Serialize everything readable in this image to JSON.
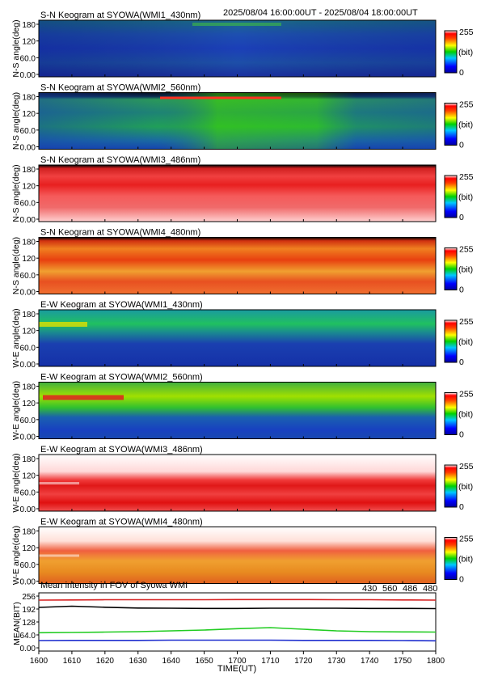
{
  "header": {
    "time_range": "2025/08/04 16:00:00UT - 2025/08/04 18:00:00UT"
  },
  "colorbar": {
    "max_label": "255",
    "unit_label": "(bit)",
    "min_label": "0"
  },
  "panels": [
    {
      "title": "S-N Keogram at SYOWA(WMI1_430nm)",
      "ylabel": "N-S angle(deg)",
      "yticks": [
        "180",
        "120",
        "60.0",
        "0.00"
      ],
      "style": "blue_dim"
    },
    {
      "title": "S-N Keogram at SYOWA(WMI2_560nm)",
      "ylabel": "N-S angle(deg)",
      "yticks": [
        "180",
        "120",
        "60.0",
        "0.00"
      ],
      "style": "green_sn"
    },
    {
      "title": "S-N Keogram at SYOWA(WMI3_486nm)",
      "ylabel": "N-S angle(deg)",
      "yticks": [
        "180",
        "120",
        "60.0",
        "0.00"
      ],
      "style": "red_sn"
    },
    {
      "title": "S-N Keogram at SYOWA(WMI4_480nm)",
      "ylabel": "N-S angle(deg)",
      "yticks": [
        "180",
        "120",
        "60.0",
        "0.00"
      ],
      "style": "orange_sn"
    },
    {
      "title": "E-W Keogram at SYOWA(WMI1_430nm)",
      "ylabel": "W-E angle(deg)",
      "yticks": [
        "180",
        "120",
        "60.0",
        "0.00"
      ],
      "style": "blue_ew"
    },
    {
      "title": "E-W Keogram at SYOWA(WMI2_560nm)",
      "ylabel": "W-E angle(deg)",
      "yticks": [
        "180",
        "120",
        "60.0",
        "0.00"
      ],
      "style": "green_ew"
    },
    {
      "title": "E-W Keogram at SYOWA(WMI3_486nm)",
      "ylabel": "W-E angle(deg)",
      "yticks": [
        "180",
        "120",
        "60.0",
        "0.00"
      ],
      "style": "red_ew"
    },
    {
      "title": "E-W Keogram at SYOWA(WMI4_480nm)",
      "ylabel": "W-E angle(deg)",
      "yticks": [
        "180",
        "120",
        "60.0",
        "0.00"
      ],
      "style": "orange_ew"
    }
  ],
  "chart_data": {
    "type": "line",
    "title": "Mean intensity in FOV of Syowa WMI",
    "ylabel": "MEAN(BIT)",
    "xlabel": "TIME(UT)",
    "ylim": [
      0,
      256
    ],
    "yticks": [
      "256",
      "192",
      "128",
      "64.0",
      "0.00"
    ],
    "x": [
      "1600",
      "1610",
      "1620",
      "1630",
      "1640",
      "1650",
      "1700",
      "1710",
      "1720",
      "1730",
      "1740",
      "1750",
      "1800"
    ],
    "series": [
      {
        "name": "430",
        "color": "#1f2fcf",
        "values": [
          36,
          37,
          37,
          37,
          38,
          38,
          38,
          38,
          37,
          37,
          37,
          36,
          35
        ]
      },
      {
        "name": "560",
        "color": "#22cc22",
        "values": [
          75,
          76,
          78,
          80,
          84,
          88,
          95,
          100,
          92,
          84,
          80,
          79,
          78
        ]
      },
      {
        "name": "486",
        "color": "#d61f1f",
        "values": [
          236,
          237,
          238,
          238,
          238,
          238,
          239,
          239,
          239,
          238,
          238,
          237,
          236
        ]
      },
      {
        "name": "480",
        "color": "#000000",
        "values": [
          200,
          206,
          201,
          197,
          196,
          195,
          195,
          196,
          196,
          196,
          195,
          195,
          194
        ]
      }
    ]
  }
}
